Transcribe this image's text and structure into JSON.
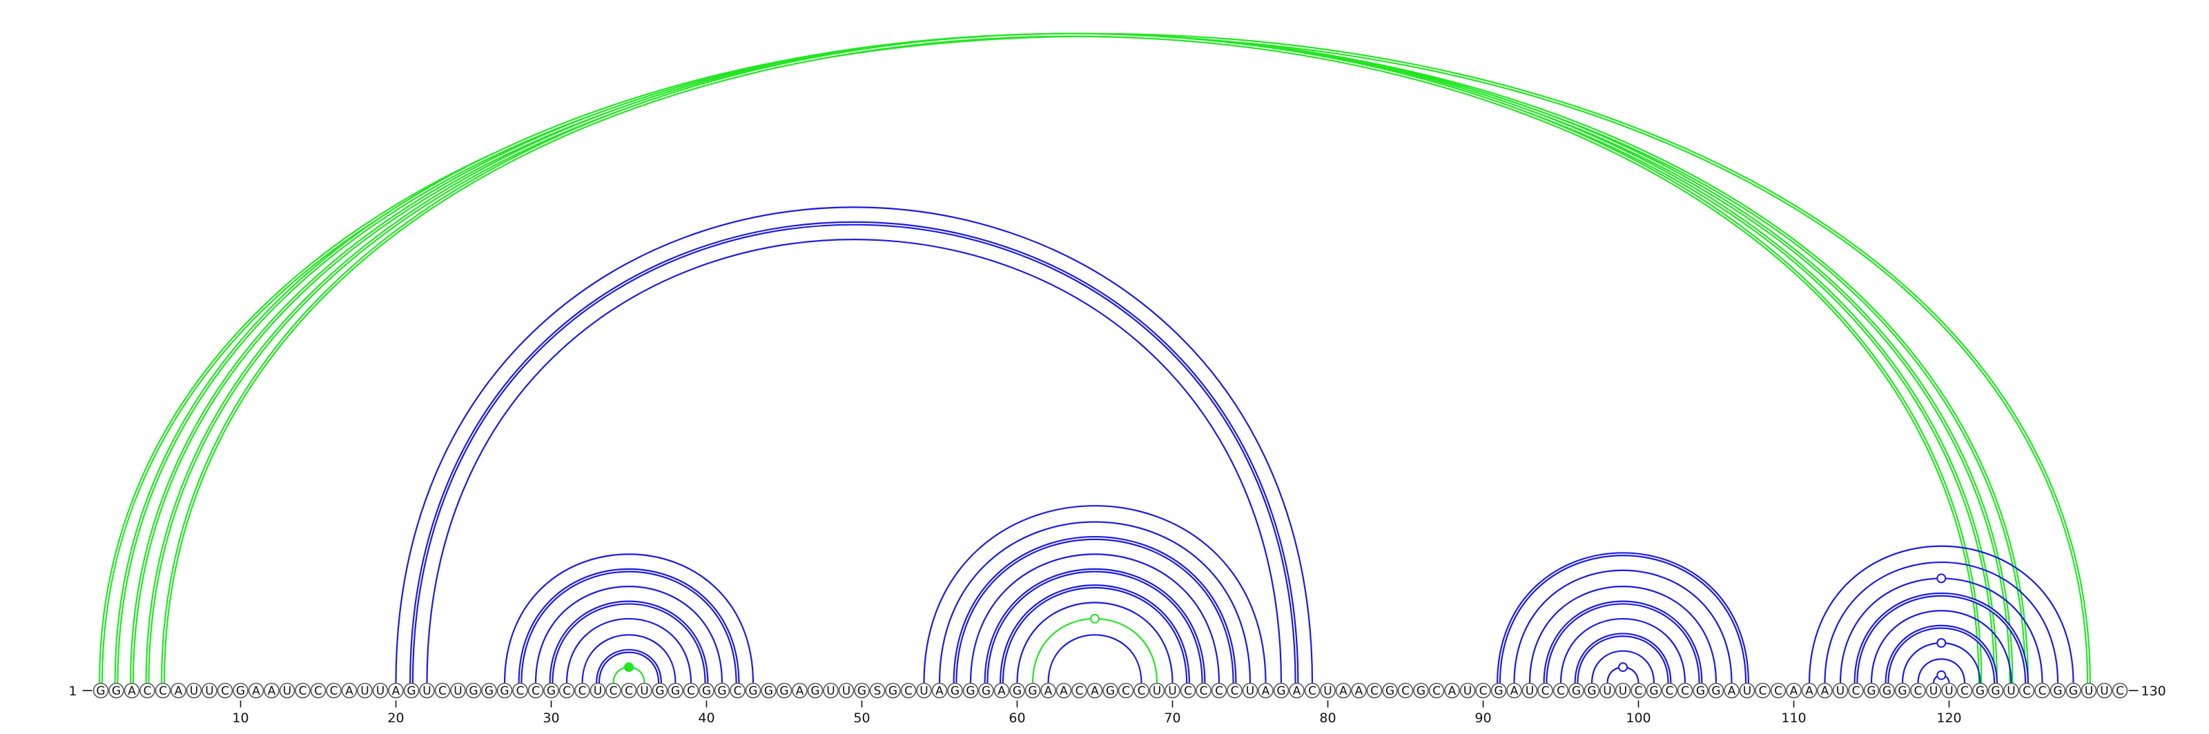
{
  "sequence": "GGACCAUUCGAAUCCCAUUAGUCUGGGCCGCCUCCUGGCGGCGGGAGUUGSGCUAGGGAGGAACAGCCUUCCCCUAGACUAACGCGCAUCGAUCCGGUUCGCCGGAUCCAAAUCGGGCUUCGGUCCGGUUC",
  "labels": {
    "start": "1",
    "end": "130",
    "ticks": [
      "10",
      "20",
      "30",
      "40",
      "50",
      "60",
      "70",
      "80",
      "90",
      "100",
      "110",
      "120"
    ]
  },
  "colors": {
    "blue": "#1a1ae6",
    "green": "#22e622"
  },
  "arcs": [
    {
      "i": 1,
      "j": 129,
      "color": "green",
      "style": "double"
    },
    {
      "i": 2,
      "j": 125,
      "color": "green",
      "style": "double"
    },
    {
      "i": 3,
      "j": 124,
      "color": "green",
      "style": "double"
    },
    {
      "i": 4,
      "j": 123,
      "color": "green",
      "style": "double"
    },
    {
      "i": 5,
      "j": 122,
      "color": "green",
      "style": "double"
    },
    {
      "i": 20,
      "j": 79,
      "color": "blue",
      "style": "single"
    },
    {
      "i": 21,
      "j": 78,
      "color": "blue",
      "style": "double"
    },
    {
      "i": 22,
      "j": 77,
      "color": "blue",
      "style": "single"
    },
    {
      "i": 27,
      "j": 43,
      "color": "blue",
      "style": "single"
    },
    {
      "i": 28,
      "j": 42,
      "color": "blue",
      "style": "double"
    },
    {
      "i": 29,
      "j": 41,
      "color": "blue",
      "style": "single"
    },
    {
      "i": 30,
      "j": 40,
      "color": "blue",
      "style": "double"
    },
    {
      "i": 31,
      "j": 39,
      "color": "blue",
      "style": "single"
    },
    {
      "i": 32,
      "j": 38,
      "color": "blue",
      "style": "single"
    },
    {
      "i": 33,
      "j": 37,
      "color": "blue",
      "style": "double"
    },
    {
      "i": 34,
      "j": 36,
      "color": "green",
      "style": "single",
      "marker": "filled"
    },
    {
      "i": 54,
      "j": 76,
      "color": "blue",
      "style": "single"
    },
    {
      "i": 55,
      "j": 75,
      "color": "blue",
      "style": "single"
    },
    {
      "i": 56,
      "j": 74,
      "color": "blue",
      "style": "double"
    },
    {
      "i": 57,
      "j": 73,
      "color": "blue",
      "style": "single"
    },
    {
      "i": 58,
      "j": 72,
      "color": "blue",
      "style": "double"
    },
    {
      "i": 59,
      "j": 71,
      "color": "blue",
      "style": "double"
    },
    {
      "i": 60,
      "j": 70,
      "color": "blue",
      "style": "single"
    },
    {
      "i": 61,
      "j": 69,
      "color": "green",
      "style": "single",
      "marker": "open"
    },
    {
      "i": 62,
      "j": 68,
      "color": "blue",
      "style": "single"
    },
    {
      "i": 91,
      "j": 107,
      "color": "blue",
      "style": "double"
    },
    {
      "i": 92,
      "j": 106,
      "color": "blue",
      "style": "single"
    },
    {
      "i": 93,
      "j": 105,
      "color": "blue",
      "style": "single"
    },
    {
      "i": 94,
      "j": 104,
      "color": "blue",
      "style": "double"
    },
    {
      "i": 95,
      "j": 103,
      "color": "blue",
      "style": "single"
    },
    {
      "i": 96,
      "j": 102,
      "color": "blue",
      "style": "double"
    },
    {
      "i": 97,
      "j": 101,
      "color": "blue",
      "style": "single"
    },
    {
      "i": 98,
      "j": 100,
      "color": "blue",
      "style": "single",
      "marker": "open"
    },
    {
      "i": 111,
      "j": 128,
      "color": "blue",
      "style": "single"
    },
    {
      "i": 112,
      "j": 127,
      "color": "blue",
      "style": "single"
    },
    {
      "i": 113,
      "j": 126,
      "color": "blue",
      "style": "single",
      "marker": "open"
    },
    {
      "i": 114,
      "j": 125,
      "color": "blue",
      "style": "double"
    },
    {
      "i": 115,
      "j": 124,
      "color": "blue",
      "style": "single"
    },
    {
      "i": 116,
      "j": 123,
      "color": "blue",
      "style": "double"
    },
    {
      "i": 117,
      "j": 122,
      "color": "blue",
      "style": "single",
      "marker": "open"
    },
    {
      "i": 118,
      "j": 121,
      "color": "blue",
      "style": "single"
    },
    {
      "i": 119,
      "j": 120,
      "color": "blue",
      "style": "single",
      "marker": "open"
    }
  ]
}
